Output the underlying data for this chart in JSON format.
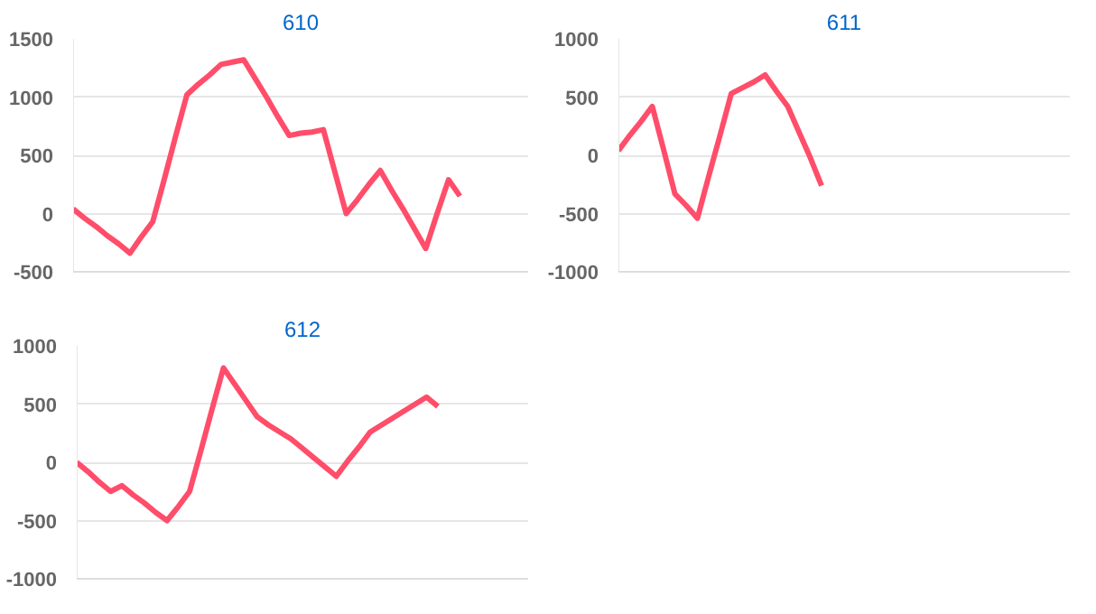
{
  "chart_data": [
    {
      "type": "line",
      "title": "610",
      "color": "#ff4d6a",
      "ylim": [
        -500,
        1500
      ],
      "yticks": [
        -500,
        0,
        500,
        1000,
        1500
      ],
      "grid": "y",
      "tick_labels": "y",
      "categories": [
        null,
        null,
        null,
        null,
        null,
        null,
        null,
        null,
        null,
        null,
        null,
        null,
        null,
        null,
        null,
        null,
        null,
        null,
        null,
        null,
        null,
        null,
        null,
        null,
        null,
        null,
        null,
        null,
        null,
        null,
        null,
        null,
        null,
        null,
        null,
        null,
        null,
        null,
        null,
        null,
        null
      ],
      "values": [
        40,
        -40,
        -110,
        -190,
        -260,
        -340,
        -200,
        -70,
        290,
        660,
        1020,
        1110,
        1190,
        1280,
        1300,
        1320,
        1160,
        1000,
        830,
        670,
        690,
        700,
        720,
        360,
        0,
        120,
        250,
        370,
        200,
        40,
        -130,
        -300,
        0,
        290,
        150,
        null,
        null,
        null,
        null,
        null,
        null
      ]
    },
    {
      "type": "line",
      "title": "611",
      "color": "#ff4d6a",
      "ylim": [
        -1000,
        1000
      ],
      "yticks": [
        -1000,
        -500,
        0,
        500,
        1000
      ],
      "grid": "y",
      "tick_labels": "y",
      "categories": [
        null,
        null,
        null,
        null,
        null,
        null,
        null,
        null,
        null,
        null,
        null,
        null,
        null,
        null,
        null,
        null,
        null,
        null,
        null,
        null,
        null,
        null,
        null,
        null,
        null,
        null,
        null,
        null,
        null,
        null,
        null,
        null,
        null,
        null,
        null,
        null,
        null,
        null,
        null,
        null,
        null
      ],
      "values": [
        40,
        170,
        290,
        420,
        50,
        -330,
        -430,
        -540,
        -180,
        170,
        530,
        580,
        630,
        690,
        550,
        420,
        200,
        -20,
        -260,
        null,
        null,
        null,
        null,
        null,
        null,
        null,
        null,
        null,
        null,
        null,
        null,
        null,
        null,
        null,
        null,
        null,
        null,
        null,
        null,
        null,
        null
      ]
    },
    {
      "type": "line",
      "title": "612",
      "color": "#ff4d6a",
      "ylim": [
        -1000,
        1000
      ],
      "yticks": [
        -1000,
        -500,
        0,
        500,
        1000
      ],
      "grid": "y",
      "tick_labels": "y",
      "categories": [
        null,
        null,
        null,
        null,
        null,
        null,
        null,
        null,
        null,
        null,
        null,
        null,
        null,
        null,
        null,
        null,
        null,
        null,
        null,
        null,
        null,
        null,
        null,
        null,
        null,
        null,
        null,
        null,
        null,
        null,
        null,
        null,
        null,
        null,
        null,
        null,
        null,
        null,
        null,
        null,
        null
      ],
      "values": [
        0,
        -80,
        -170,
        -250,
        -200,
        -280,
        -350,
        -430,
        -500,
        -380,
        -250,
        100,
        460,
        810,
        670,
        530,
        390,
        320,
        260,
        200,
        120,
        40,
        -40,
        -120,
        10,
        130,
        260,
        320,
        380,
        440,
        500,
        560,
        480,
        null,
        null,
        null,
        null,
        null,
        null,
        null,
        null
      ]
    }
  ]
}
